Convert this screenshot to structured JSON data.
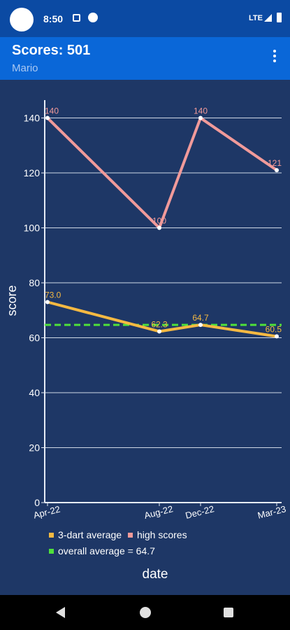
{
  "status_bar": {
    "time": "8:50",
    "network": "LTE",
    "icons": [
      "avatar",
      "notification-icon",
      "app-icon",
      "signal-icon",
      "battery-icon"
    ]
  },
  "app_bar": {
    "title": "Scores: 501",
    "subtitle": "Mario",
    "menu_icon": "more-vert-icon"
  },
  "colors": {
    "background": "#1e3766",
    "average_line": "#f5b942",
    "high_scores_line": "#f19a9a",
    "overall_line": "#4fe03a",
    "app_bar": "#0a67d8"
  },
  "chart_data": {
    "type": "line",
    "categories": [
      "Apr-22",
      "Aug-22",
      "Dec-22",
      "Mar-23"
    ],
    "series": [
      {
        "name": "3-dart average",
        "color": "#f5b942",
        "values": [
          73.0,
          62.3,
          64.7,
          60.5
        ],
        "labels": [
          "73.0",
          "62.3",
          "64.7",
          "60.5"
        ]
      },
      {
        "name": "high scores",
        "color": "#f19a9a",
        "values": [
          140,
          100,
          140,
          121
        ],
        "labels": [
          "140",
          "100",
          "140",
          "121"
        ]
      }
    ],
    "reference_line": {
      "name": "overall average = 64.7",
      "value": 64.7,
      "color": "#4fe03a",
      "style": "dashed"
    },
    "xlabel": "date",
    "ylabel": "score",
    "yticks": [
      "0",
      "20",
      "40",
      "60",
      "80",
      "100",
      "120",
      "140"
    ],
    "ylim": [
      0,
      140
    ],
    "grid": true,
    "legend_position": "bottom"
  }
}
